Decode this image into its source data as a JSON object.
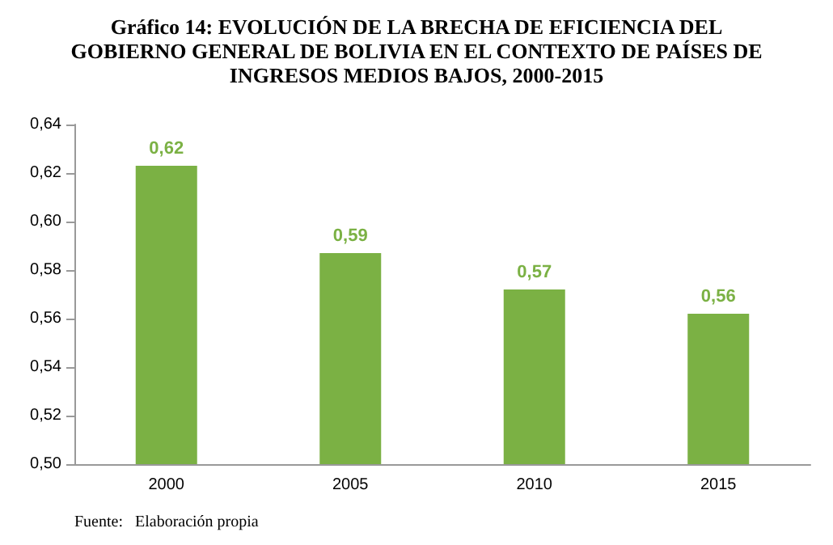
{
  "chart_data": {
    "type": "bar",
    "title": "Gráfico 14: EVOLUCIÓN DE LA BRECHA DE EFICIENCIA DEL\nGOBIERNO GENERAL DE BOLIVIA EN EL CONTEXTO DE PAÍSES DE\nINGRESOS MEDIOS BAJOS, 2000-2015",
    "categories": [
      "2000",
      "2005",
      "2010",
      "2015"
    ],
    "values": [
      0.623,
      0.587,
      0.572,
      0.562
    ],
    "value_labels": [
      "0,62",
      "0,59",
      "0,57",
      "0,56"
    ],
    "color": "#7bb144",
    "ylim": [
      0.5,
      0.64
    ],
    "yticks": [
      {
        "value": 0.5,
        "label": "0,50"
      },
      {
        "value": 0.52,
        "label": "0,52"
      },
      {
        "value": 0.54,
        "label": "0,54"
      },
      {
        "value": 0.56,
        "label": "0,56"
      },
      {
        "value": 0.58,
        "label": "0,58"
      },
      {
        "value": 0.6,
        "label": "0,60"
      },
      {
        "value": 0.62,
        "label": "0,62"
      },
      {
        "value": 0.64,
        "label": "0,64"
      }
    ],
    "annotations": [
      "Fuente:   Elaboración propia"
    ]
  }
}
